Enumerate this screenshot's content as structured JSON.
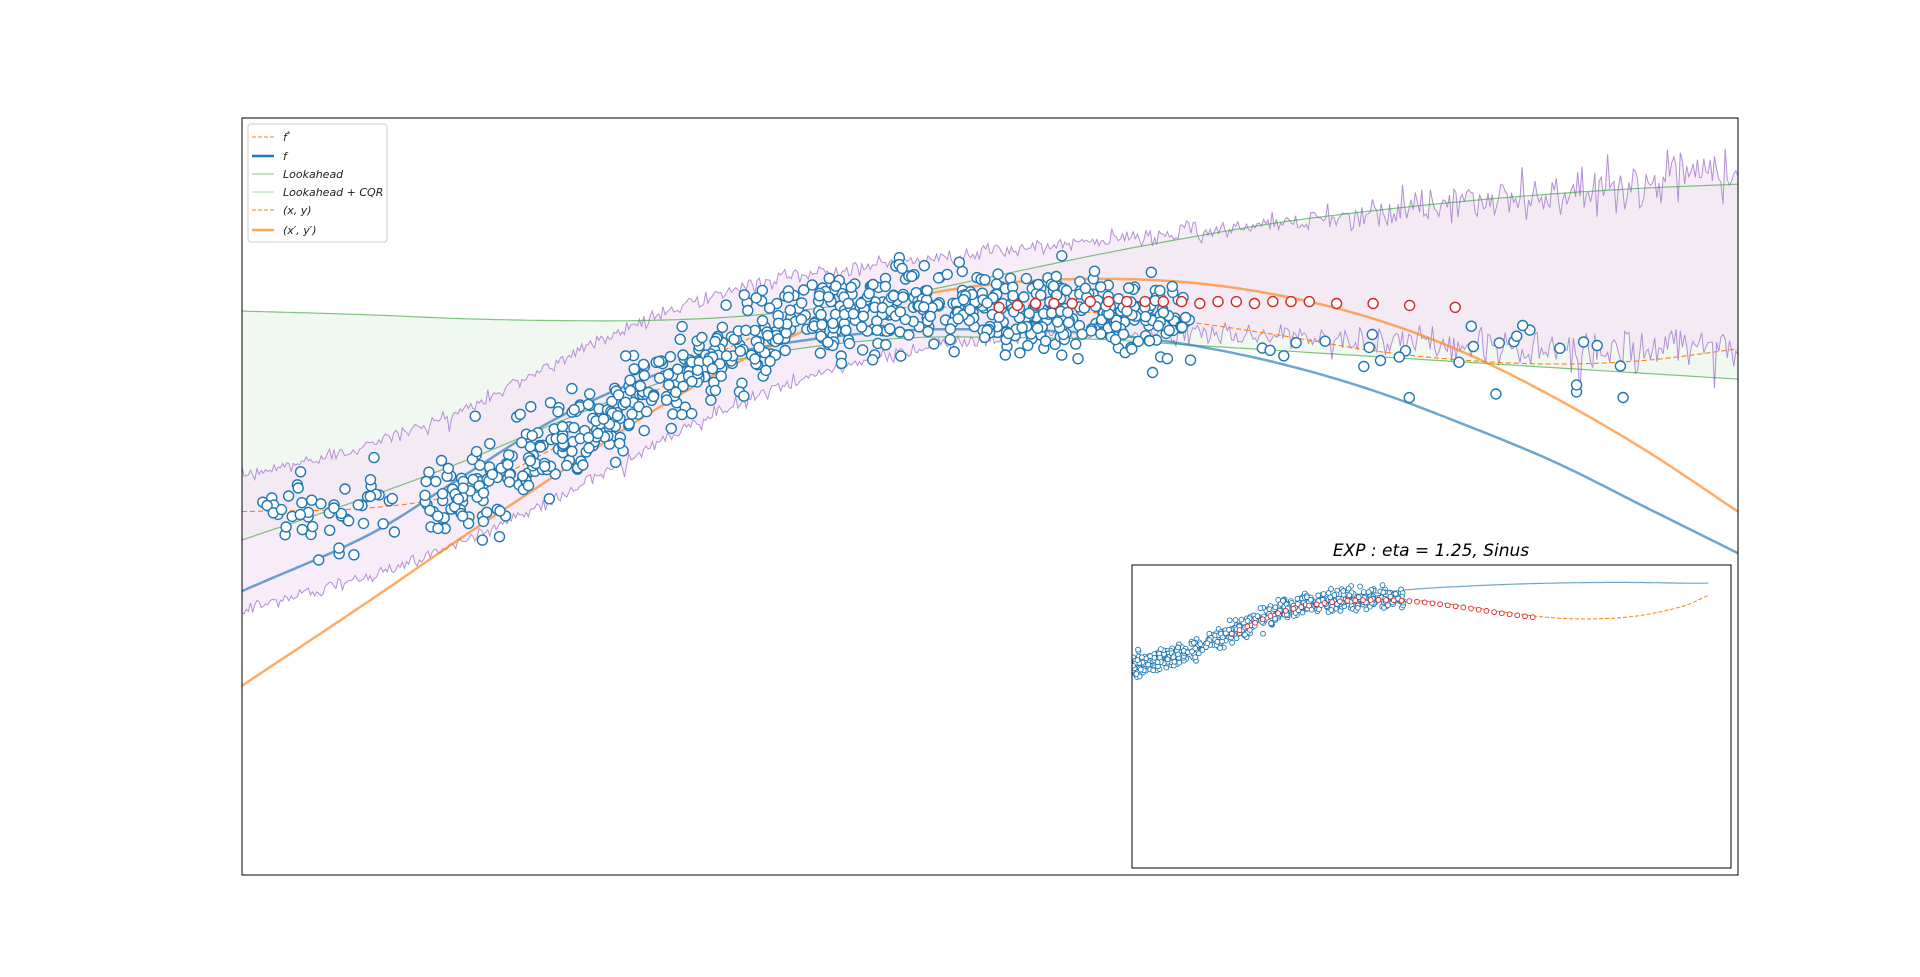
{
  "chart_data": {
    "type": "scatter",
    "xlim": [
      -3.2,
      5.0
    ],
    "ylim": [
      -2.0,
      2.0
    ],
    "grid": false,
    "axes_ticks": false,
    "legend_placement": "upper-left",
    "colors": {
      "f_star": "#ff7f0e",
      "f": "#1f77b4",
      "lookahead": "#2ca02c",
      "lookahead_band": "#dff0df",
      "cqr_line": "#b58fd6",
      "cqr_band": "#f4e6f4",
      "x_y": "#ff7f0e",
      "x_prime_y_prime": "#ff7f0e",
      "points_observed": "#1f77b4",
      "points_shifted": "#d62728"
    },
    "legend": [
      {
        "key": "f_star",
        "label": "$f^*$",
        "style": "dashed"
      },
      {
        "key": "f",
        "label": "$f$",
        "style": "solid-thick"
      },
      {
        "key": "lookahead",
        "label": "$Lookahead$",
        "style": "solid-thin"
      },
      {
        "key": "lookahead_cqr",
        "label": "$Lookahead+CQR$",
        "style": "solid-thin"
      },
      {
        "key": "x_y",
        "label": "$(x,y)$",
        "style": "dashed"
      },
      {
        "key": "x_prime_y_prime",
        "label": "$(x',y')$",
        "style": "solid-thick"
      }
    ],
    "series": [
      {
        "key": "f_star",
        "x": [
          -3.2,
          -2.5,
          -2.0,
          -1.5,
          -1.0,
          -0.5,
          0.0,
          0.5,
          1.0,
          1.5,
          2.0,
          2.5,
          3.0,
          3.5,
          4.0,
          4.5,
          5.0
        ],
        "y": [
          -0.08,
          -0.06,
          0.02,
          0.25,
          0.52,
          0.8,
          0.96,
          1.0,
          0.99,
          0.97,
          0.92,
          0.85,
          0.77,
          0.72,
          0.7,
          0.72,
          0.78
        ]
      },
      {
        "key": "f",
        "x": [
          -3.2,
          -2.5,
          -2.0,
          -1.5,
          -1.0,
          -0.5,
          0.0,
          0.5,
          1.0,
          1.5,
          2.0,
          2.5,
          3.0,
          3.5,
          4.0,
          4.5,
          5.0
        ],
        "y": [
          -0.5,
          -0.2,
          0.1,
          0.4,
          0.62,
          0.76,
          0.84,
          0.88,
          0.88,
          0.86,
          0.8,
          0.7,
          0.56,
          0.38,
          0.18,
          -0.06,
          -0.3
        ]
      },
      {
        "key": "lookahead",
        "x": [
          -3.2,
          -2.5,
          -2.0,
          -1.5,
          -1.0,
          -0.5,
          0.0,
          0.5,
          1.0,
          1.5,
          2.0,
          2.5,
          3.0,
          3.5,
          4.0,
          4.5,
          5.0
        ],
        "y_upper": [
          0.98,
          0.96,
          0.94,
          0.93,
          0.93,
          0.95,
          1.0,
          1.08,
          1.18,
          1.28,
          1.37,
          1.45,
          1.51,
          1.56,
          1.6,
          1.63,
          1.65
        ],
        "y_lower": [
          -0.23,
          0.0,
          0.18,
          0.38,
          0.57,
          0.72,
          0.8,
          0.84,
          0.84,
          0.83,
          0.8,
          0.77,
          0.74,
          0.71,
          0.68,
          0.65,
          0.62
        ]
      },
      {
        "key": "lookahead_cqr",
        "x": [
          -3.2,
          -2.5,
          -2.0,
          -1.5,
          -1.0,
          -0.5,
          0.0,
          0.5,
          1.0,
          1.5,
          2.0,
          2.5,
          3.0,
          3.5,
          4.0,
          4.5,
          5.0
        ],
        "y_upper": [
          0.1,
          0.28,
          0.45,
          0.7,
          0.93,
          1.09,
          1.19,
          1.25,
          1.3,
          1.35,
          1.4,
          1.45,
          1.5,
          1.55,
          1.6,
          1.66,
          1.72
        ],
        "y_lower": [
          -0.6,
          -0.42,
          -0.24,
          -0.02,
          0.24,
          0.48,
          0.66,
          0.78,
          0.84,
          0.86,
          0.86,
          0.84,
          0.82,
          0.8,
          0.78,
          0.77,
          0.78
        ]
      },
      {
        "key": "x_prime_y_prime",
        "x": [
          -3.2,
          -2.5,
          -2.0,
          -1.5,
          -1.0,
          -0.5,
          0.0,
          0.5,
          1.0,
          1.5,
          2.0,
          2.5,
          3.0,
          3.5,
          4.0,
          4.5,
          5.0
        ],
        "y": [
          -1.0,
          -0.55,
          -0.22,
          0.1,
          0.42,
          0.7,
          0.92,
          1.06,
          1.13,
          1.15,
          1.13,
          1.06,
          0.94,
          0.76,
          0.52,
          0.24,
          -0.08
        ]
      }
    ],
    "scatter_observed": {
      "key": "observed",
      "n": 900,
      "x_range": [
        -3.1,
        4.5
      ],
      "model": "f_star"
    },
    "scatter_shifted": {
      "key": "x_y_points",
      "x": [
        0.95,
        1.05,
        1.15,
        1.25,
        1.35,
        1.45,
        1.55,
        1.65,
        1.75,
        1.85,
        1.95,
        2.05,
        2.15,
        2.25,
        2.35,
        2.45,
        2.55,
        2.65,
        2.8,
        3.0,
        3.2,
        3.45
      ],
      "y": [
        1.0,
        1.01,
        1.02,
        1.02,
        1.02,
        1.03,
        1.03,
        1.03,
        1.03,
        1.03,
        1.03,
        1.02,
        1.03,
        1.03,
        1.02,
        1.03,
        1.03,
        1.03,
        1.02,
        1.02,
        1.01,
        1.0
      ]
    },
    "inset": {
      "title": "$EXP: eta = 1.25, Sinus$",
      "xlim": [
        -3.2,
        10.0
      ],
      "ylim": [
        -3.0,
        1.5
      ],
      "f_star_x": [
        -3.2,
        -2.0,
        -1.0,
        0.0,
        1.0,
        2.0,
        3.0,
        4.0,
        5.0,
        6.0,
        7.0,
        8.0,
        9.0,
        9.5
      ],
      "f_star_y": [
        0.0,
        0.2,
        0.5,
        0.8,
        0.95,
        1.0,
        0.98,
        0.9,
        0.8,
        0.72,
        0.7,
        0.75,
        0.9,
        1.05
      ],
      "f_x": [
        -3.2,
        -2.0,
        -1.0,
        0.0,
        1.0,
        2.0,
        3.0,
        4.0,
        5.0,
        6.0,
        7.0,
        8.0,
        9.0,
        9.5
      ],
      "f_y": [
        0.02,
        0.22,
        0.52,
        0.8,
        0.97,
        1.07,
        1.14,
        1.18,
        1.21,
        1.23,
        1.24,
        1.24,
        1.23,
        1.23
      ]
    }
  }
}
